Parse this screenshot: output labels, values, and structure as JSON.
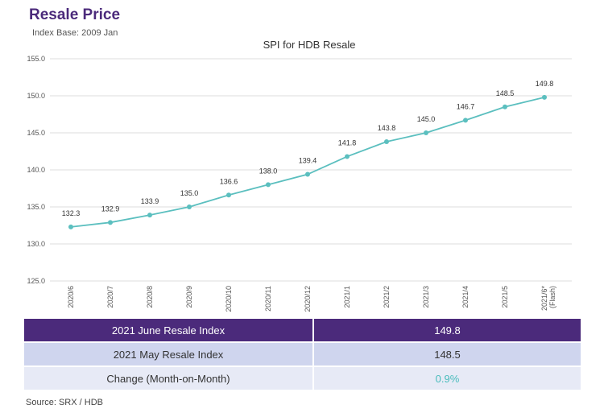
{
  "header": {
    "title": "Resale Price",
    "subtitle": "Index Base: 2009 Jan"
  },
  "chart_data": {
    "type": "line",
    "title": "SPI for HDB Resale",
    "xlabel": "",
    "ylabel": "",
    "categories": [
      "2020/6",
      "2020/7",
      "2020/8",
      "2020/9",
      "2020/10",
      "2020/11",
      "2020/12",
      "2021/1",
      "2021/2",
      "2021/3",
      "2021/4",
      "2021/5",
      "2021/6*"
    ],
    "category_sublabels": [
      "",
      "",
      "",
      "",
      "",
      "",
      "",
      "",
      "",
      "",
      "",
      "",
      "(Flash)"
    ],
    "series": [
      {
        "values": [
          132.3,
          132.9,
          133.9,
          135.0,
          136.6,
          138.0,
          139.4,
          141.8,
          143.8,
          145.0,
          146.7,
          148.5,
          149.8
        ]
      }
    ],
    "data_labels": [
      "132.3",
      "132.9",
      "133.9",
      "135.0",
      "136.6",
      "138.0",
      "139.4",
      "141.8",
      "143.8",
      "145.0",
      "146.7",
      "148.5",
      "149.8"
    ],
    "ylim": [
      125,
      155
    ],
    "yticks": [
      "125.0",
      "130.0",
      "135.0",
      "140.0",
      "145.0",
      "150.0",
      "155.0"
    ],
    "grid": true,
    "line_color": "#5bbfbf"
  },
  "summary": {
    "rows": [
      {
        "label": "2021 June Resale Index",
        "value": "149.8"
      },
      {
        "label": "2021 May Resale Index",
        "value": "148.5"
      },
      {
        "label": "Change (Month-on-Month)",
        "value": "0.9%"
      }
    ]
  },
  "footer": {
    "source": "Source: SRX / HDB"
  },
  "colors": {
    "brand": "#4b2a7b",
    "accent": "#5bbfbf",
    "row_light": "#cfd5ee",
    "row_lighter": "#e7eaf6"
  }
}
